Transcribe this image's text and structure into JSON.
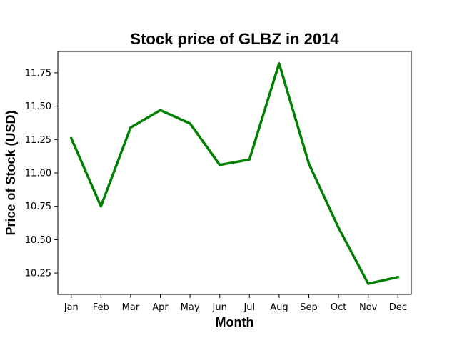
{
  "chart_data": {
    "type": "line",
    "title": "Stock price of GLBZ in 2014",
    "xlabel": "Month",
    "ylabel": "Price of Stock (USD)",
    "categories": [
      "Jan",
      "Feb",
      "Mar",
      "Apr",
      "May",
      "Jun",
      "Jul",
      "Aug",
      "Sep",
      "Oct",
      "Nov",
      "Dec"
    ],
    "series": [
      {
        "values": [
          11.26,
          10.75,
          11.34,
          11.47,
          11.37,
          11.06,
          11.1,
          11.82,
          11.07,
          10.59,
          10.17,
          10.22
        ],
        "color": "#008000"
      }
    ],
    "yticks": [
      "10.25",
      "10.50",
      "10.75",
      "11.00",
      "11.25",
      "11.50",
      "11.75"
    ],
    "ylim": [
      10.09,
      11.91
    ],
    "grid": false,
    "legend": "none"
  }
}
